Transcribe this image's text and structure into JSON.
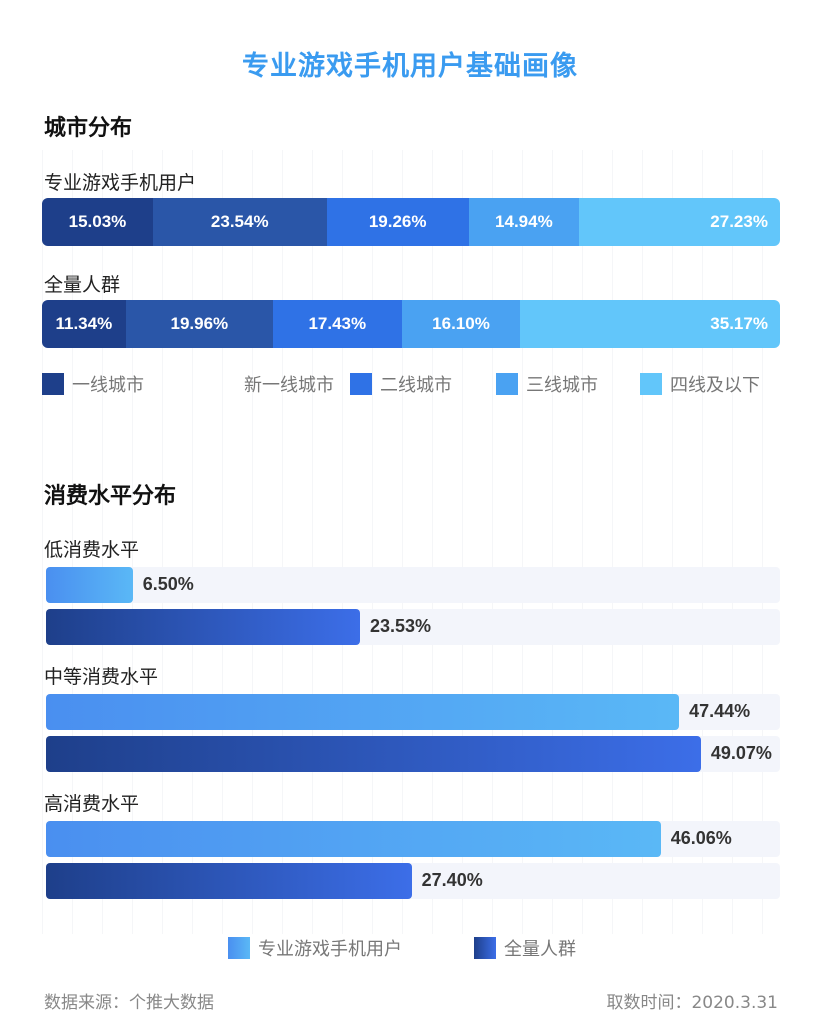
{
  "title": "专业游戏手机用户基础画像",
  "chart_data": [
    {
      "type": "bar",
      "stacked": true,
      "title": "城市分布",
      "categories": [
        "专业游戏手机用户",
        "全量人群"
      ],
      "series": [
        {
          "name": "一线城市",
          "color": "#1e3f8a",
          "values": [
            "15.03%",
            "11.34%"
          ],
          "num": [
            15.03,
            11.34
          ]
        },
        {
          "name": "新一线城市",
          "color": "#2a56a8",
          "values": [
            "23.54%",
            "19.96%"
          ],
          "num": [
            23.54,
            19.96
          ]
        },
        {
          "name": "二线城市",
          "color": "#2f72e6",
          "values": [
            "19.26%",
            "17.43%"
          ],
          "num": [
            19.26,
            17.43
          ]
        },
        {
          "name": "三线城市",
          "color": "#4aa2f2",
          "values": [
            "14.94%",
            "16.10%"
          ],
          "num": [
            14.94,
            16.1
          ]
        },
        {
          "name": "四线及以下",
          "color": "#62c6fa",
          "values": [
            "27.23%",
            "35.17%"
          ],
          "num": [
            27.23,
            35.17
          ]
        }
      ]
    },
    {
      "type": "bar",
      "orientation": "horizontal",
      "title": "消费水平分布",
      "xlim": [
        0,
        55
      ],
      "categories": [
        "低消费水平",
        "中等消费水平",
        "高消费水平"
      ],
      "series": [
        {
          "name": "专业游戏手机用户",
          "values": [
            "6.50%",
            "47.44%",
            "46.06%"
          ],
          "num": [
            6.5,
            47.44,
            46.06
          ]
        },
        {
          "name": "全量人群",
          "values": [
            "23.53%",
            "49.07%",
            "27.40%"
          ],
          "num": [
            23.53,
            49.07,
            27.4
          ]
        }
      ]
    }
  ],
  "footer": {
    "source": "数据来源：个推大数据",
    "date": "取数时间：2020.3.31"
  }
}
